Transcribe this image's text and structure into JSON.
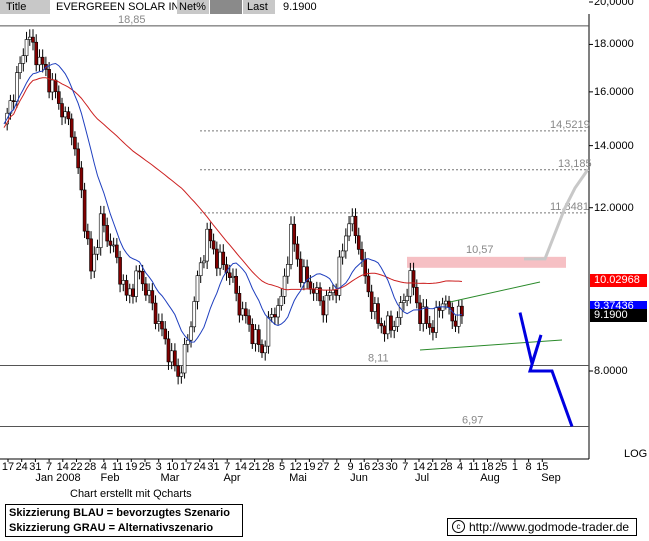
{
  "header": {
    "title_label": "Title",
    "name": "EVERGREEN SOLAR INC",
    "netpct_label": "Net%",
    "netpct_value": "",
    "last_label": "Last",
    "last_value": "9.1900"
  },
  "chart_data": {
    "type": "candlestick",
    "y_scale": "log",
    "ylim": [
      6.2,
      20.0
    ],
    "y_ticks": [
      {
        "label": "20,0000",
        "value": 20.0
      },
      {
        "label": "18.0000",
        "value": 18.0
      },
      {
        "label": "16.0000",
        "value": 16.0
      },
      {
        "label": "14.0000",
        "value": 14.0
      },
      {
        "label": "12.0000",
        "value": 12.0
      },
      {
        "label": "8.0000",
        "value": 8.0
      }
    ],
    "x_day_labels": [
      "17",
      "24",
      "31",
      "7",
      "14",
      "22",
      "28",
      "4",
      "11",
      "19",
      "25",
      "3",
      "10",
      "17",
      "24",
      "31",
      "7",
      "14",
      "21",
      "28",
      "5",
      "12",
      "19",
      "27",
      "2",
      "9",
      "16",
      "23",
      "30",
      "7",
      "14",
      "21",
      "28",
      "4",
      "11",
      "18",
      "25",
      "1",
      "8",
      "15"
    ],
    "x_month_labels": [
      "Jan 2008",
      "Feb",
      "Mar",
      "Apr",
      "Mai",
      "Jun",
      "Jul",
      "Aug",
      "Sep"
    ],
    "log_label": "LOG",
    "close_series_key_points": [
      {
        "i": 0,
        "v": 14.6
      },
      {
        "i": 5,
        "v": 17.0
      },
      {
        "i": 7,
        "v": 18.4
      },
      {
        "i": 11,
        "v": 17.3
      },
      {
        "i": 15,
        "v": 16.2
      },
      {
        "i": 19,
        "v": 15.0
      },
      {
        "i": 21,
        "v": 14.6
      },
      {
        "i": 24,
        "v": 12.4
      },
      {
        "i": 27,
        "v": 10.2
      },
      {
        "i": 30,
        "v": 11.6
      },
      {
        "i": 34,
        "v": 10.8
      },
      {
        "i": 38,
        "v": 9.6
      },
      {
        "i": 42,
        "v": 10.2
      },
      {
        "i": 46,
        "v": 9.4
      },
      {
        "i": 50,
        "v": 8.6
      },
      {
        "i": 54,
        "v": 7.9
      },
      {
        "i": 57,
        "v": 8.6
      },
      {
        "i": 60,
        "v": 10.0
      },
      {
        "i": 63,
        "v": 11.2
      },
      {
        "i": 66,
        "v": 10.6
      },
      {
        "i": 70,
        "v": 10.2
      },
      {
        "i": 73,
        "v": 9.4
      },
      {
        "i": 77,
        "v": 8.8
      },
      {
        "i": 80,
        "v": 8.4
      },
      {
        "i": 83,
        "v": 9.2
      },
      {
        "i": 86,
        "v": 9.5
      },
      {
        "i": 89,
        "v": 11.3
      },
      {
        "i": 92,
        "v": 10.2
      },
      {
        "i": 95,
        "v": 9.9
      },
      {
        "i": 99,
        "v": 9.4
      },
      {
        "i": 103,
        "v": 9.9
      },
      {
        "i": 107,
        "v": 11.7
      },
      {
        "i": 110,
        "v": 11.0
      },
      {
        "i": 112,
        "v": 10.0
      },
      {
        "i": 116,
        "v": 9.0
      },
      {
        "i": 120,
        "v": 8.9
      },
      {
        "i": 123,
        "v": 9.3
      },
      {
        "i": 126,
        "v": 10.1
      },
      {
        "i": 129,
        "v": 9.2
      },
      {
        "i": 133,
        "v": 8.9
      },
      {
        "i": 136,
        "v": 9.6
      },
      {
        "i": 139,
        "v": 9.1
      },
      {
        "i": 142,
        "v": 9.2
      }
    ],
    "ma_blue_value": "9.37436",
    "ma_red_value": "10.02968",
    "last_value_badge": "9.1900",
    "levels": [
      {
        "label": "18,85",
        "value": 18.85,
        "style": "solid"
      },
      {
        "label": "14,5219",
        "value": 14.5219,
        "style": "dotted"
      },
      {
        "label": "13,185",
        "value": 13.185,
        "style": "dotted"
      },
      {
        "label": "11,8481",
        "value": 11.8481,
        "style": "dotted"
      },
      {
        "label": "10,57",
        "value": 10.57,
        "style": "zone"
      },
      {
        "label": "8,11",
        "value": 8.11,
        "style": "solid"
      },
      {
        "label": "6,97",
        "value": 6.97,
        "style": "solid"
      }
    ],
    "scenario_blue": [
      9.25,
      8.15,
      8.75,
      8.0,
      8.0,
      6.97
    ],
    "scenario_grey": [
      10.57,
      10.57,
      12.0,
      12.6,
      13.2
    ]
  },
  "footer": {
    "credit": "Chart erstellt mit Qcharts",
    "legend_line1": "Skizzierung BLAU = bevorzugtes Szenario",
    "legend_line2": "Skizzierung GRAU = Alternativszenario",
    "url": "http://www.godmode-trader.de",
    "copyright_symbol": "c"
  },
  "colors": {
    "candle_up": "#ffffff",
    "candle_down": "#800000",
    "ma_blue": "#1f3fbf",
    "ma_red": "#cc2020",
    "scenario_blue": "#0000e0",
    "scenario_grey": "#c8c8c8",
    "trend_green": "#2a8a2a",
    "resistance_zone": "#f6c0c4",
    "badge_red": "#ff0000",
    "badge_blue": "#0000ff",
    "badge_black": "#000000"
  }
}
